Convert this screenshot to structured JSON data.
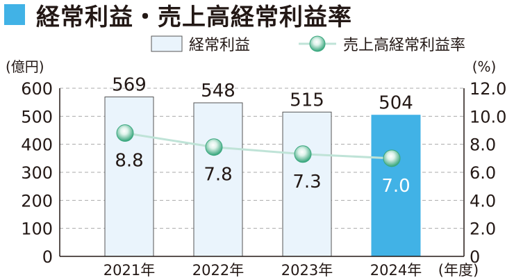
{
  "title": "経常利益・売上高経常利益率",
  "chart_data": {
    "type": "bar",
    "categories": [
      "2021年",
      "2022年",
      "2023年",
      "2024年"
    ],
    "x_unit": "(年度)",
    "series": [
      {
        "name": "経常利益",
        "type": "bar",
        "axis": "left",
        "values": [
          569,
          548,
          515,
          504
        ],
        "labels": [
          "569",
          "548",
          "515",
          "504"
        ]
      },
      {
        "name": "売上高経常利益率",
        "type": "line",
        "axis": "right",
        "values": [
          8.8,
          7.8,
          7.3,
          7.0
        ],
        "labels": [
          "8.8",
          "7.8",
          "7.3",
          "7.0"
        ]
      }
    ],
    "left_axis": {
      "unit": "(億円)",
      "ylim": [
        0,
        600
      ],
      "ticks": [
        "0",
        "100",
        "200",
        "300",
        "400",
        "500",
        "600"
      ]
    },
    "right_axis": {
      "unit": "(%)",
      "ylim": [
        0,
        12
      ],
      "ticks": [
        "0",
        "2.0",
        "4.0",
        "6.0",
        "8.0",
        "10.0",
        "12.0"
      ]
    },
    "grid": true,
    "legend_position": "top-right",
    "highlight_index": 3,
    "colors": {
      "accent": "#41b2e6",
      "bar_fill": "#eaf4fc",
      "bar_stroke": "#555555",
      "highlight_fill": "#41b2e6",
      "line": "#bfe3d7",
      "marker": "#3aa77e",
      "grid": "#aaaaaa"
    }
  }
}
